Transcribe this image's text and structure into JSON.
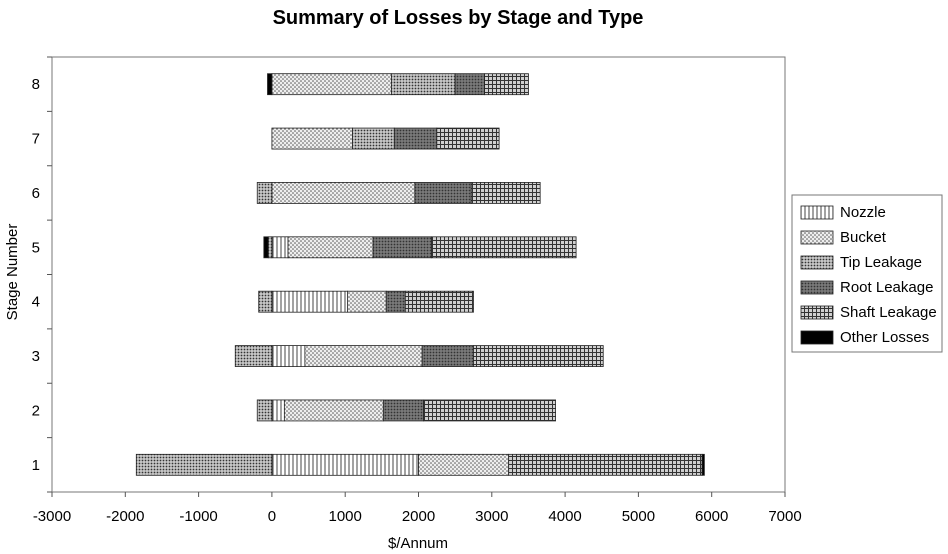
{
  "chart_data": {
    "type": "bar",
    "orientation": "horizontal",
    "stacked": true,
    "title": "Summary of Losses by Stage and Type",
    "xlabel": "$/Annum",
    "ylabel": "Stage Number",
    "xlim": [
      -3000,
      7000
    ],
    "xticks": [
      -3000,
      -2000,
      -1000,
      0,
      1000,
      2000,
      3000,
      4000,
      5000,
      6000,
      7000
    ],
    "categories": [
      "1",
      "2",
      "3",
      "4",
      "5",
      "6",
      "7",
      "8"
    ],
    "grid": false,
    "legend_position": "right",
    "series": [
      {
        "name": "Nozzle",
        "pattern": "vlines",
        "values": [
          2000,
          170,
          450,
          1030,
          220,
          0,
          0,
          0
        ]
      },
      {
        "name": "Bucket",
        "pattern": "dots",
        "values": [
          1230,
          1350,
          1600,
          530,
          1160,
          1950,
          1100,
          1630
        ]
      },
      {
        "name": "Tip Leakage",
        "pattern": "dense",
        "values": [
          -1850,
          -200,
          -500,
          -180,
          -50,
          -200,
          570,
          870
        ]
      },
      {
        "name": "Root Leakage",
        "pattern": "dark",
        "values": [
          0,
          550,
          700,
          260,
          800,
          770,
          580,
          400
        ]
      },
      {
        "name": "Shaft Leakage",
        "pattern": "grid",
        "values": [
          2640,
          1800,
          1770,
          930,
          1970,
          940,
          850,
          600
        ]
      },
      {
        "name": "Other Losses",
        "pattern": "solid",
        "values": [
          30,
          0,
          0,
          0,
          -60,
          0,
          0,
          -60
        ]
      }
    ],
    "legend": [
      "Nozzle",
      "Bucket",
      "Tip Leakage",
      "Root Leakage",
      "Shaft Leakage",
      "Other Losses"
    ]
  }
}
